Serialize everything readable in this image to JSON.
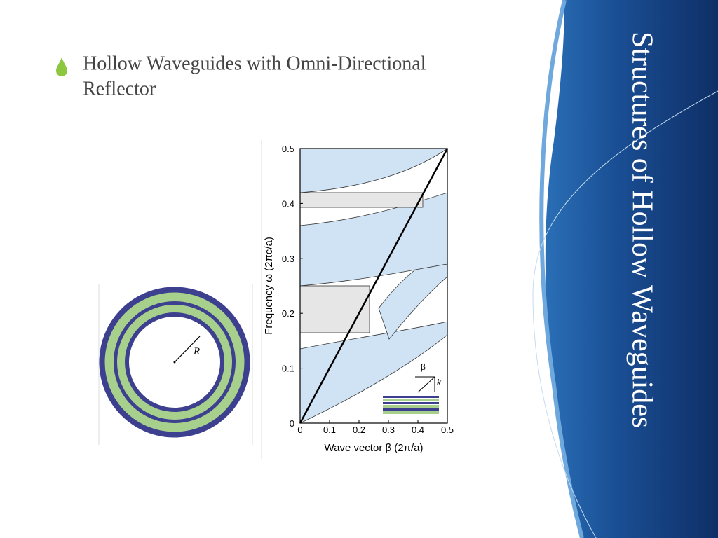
{
  "slide": {
    "title": "Structures of Hollow Waveguides",
    "bullet": [
      "Hollow Waveguides with Omni-Directional",
      "Reflector"
    ],
    "figure": {
      "radius_label": "R",
      "y_label": "Frequency ω (2πc/a)",
      "x_label": "Wave vector β (2π/a)",
      "xticks": [
        0,
        0.1,
        0.2,
        0.3,
        0.4,
        0.5
      ],
      "yticks": [
        0,
        0.1,
        0.2,
        0.3,
        0.4,
        0.5
      ],
      "xlim": [
        0,
        0.5
      ],
      "ylim": [
        0,
        0.5
      ],
      "inset_labels": [
        "β",
        "k"
      ]
    }
  }
}
